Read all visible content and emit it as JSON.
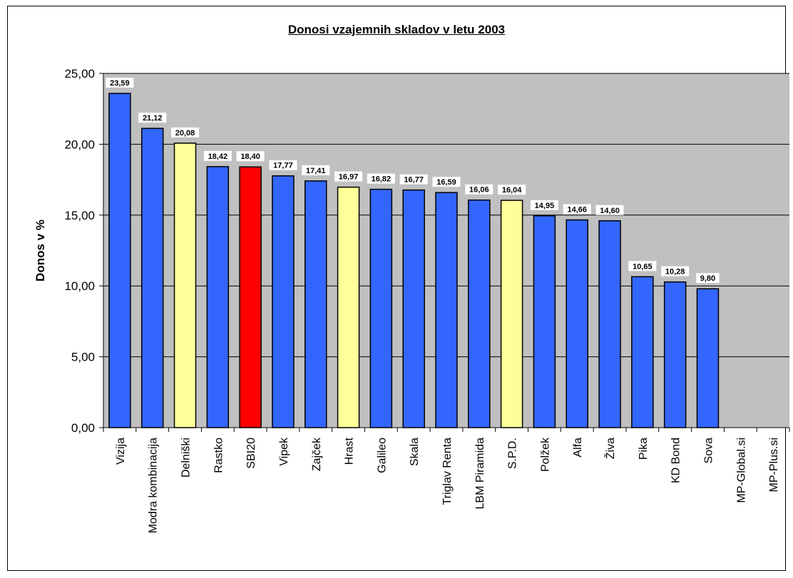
{
  "chart_data": {
    "type": "bar",
    "title": "Donosi vzajemnih skladov v letu 2003",
    "xlabel": "",
    "ylabel": "Donos v %",
    "ylim": [
      0,
      25
    ],
    "yticks": [
      "0,00",
      "5,00",
      "10,00",
      "15,00",
      "20,00",
      "25,00"
    ],
    "grid": true,
    "legend": "none",
    "categories": [
      "Vizija",
      "Modra kombinacija",
      "Delniški",
      "Rastko",
      "SBI20",
      "Vipek",
      "Zajček",
      "Hrast",
      "Galileo",
      "Skala",
      "Triglav Renta",
      "LBM Piramida",
      "S.P.D.",
      "Polžek",
      "Alfa",
      "Živa",
      "Pika",
      "KD Bond",
      "Sova",
      "MP-Global.si",
      "MP-Plus.si"
    ],
    "values": [
      23.59,
      21.12,
      20.08,
      18.42,
      18.4,
      17.77,
      17.41,
      16.97,
      16.82,
      16.77,
      16.59,
      16.06,
      16.04,
      14.95,
      14.66,
      14.6,
      10.65,
      10.28,
      9.8,
      null,
      null
    ],
    "value_labels": [
      "23,59",
      "21,12",
      "20,08",
      "18,42",
      "18,40",
      "17,77",
      "17,41",
      "16,97",
      "16,82",
      "16,77",
      "16,59",
      "16,06",
      "16,04",
      "14,95",
      "14,66",
      "14,60",
      "10,65",
      "10,28",
      "9,80",
      "",
      ""
    ],
    "bar_colors": [
      "#3366ff",
      "#3366ff",
      "#ffff99",
      "#3366ff",
      "#ff0000",
      "#3366ff",
      "#3366ff",
      "#ffff99",
      "#3366ff",
      "#3366ff",
      "#3366ff",
      "#3366ff",
      "#ffff99",
      "#3366ff",
      "#3366ff",
      "#3366ff",
      "#3366ff",
      "#3366ff",
      "#3366ff",
      "#3366ff",
      "#3366ff"
    ],
    "plot_background": "#c0c0c0"
  }
}
